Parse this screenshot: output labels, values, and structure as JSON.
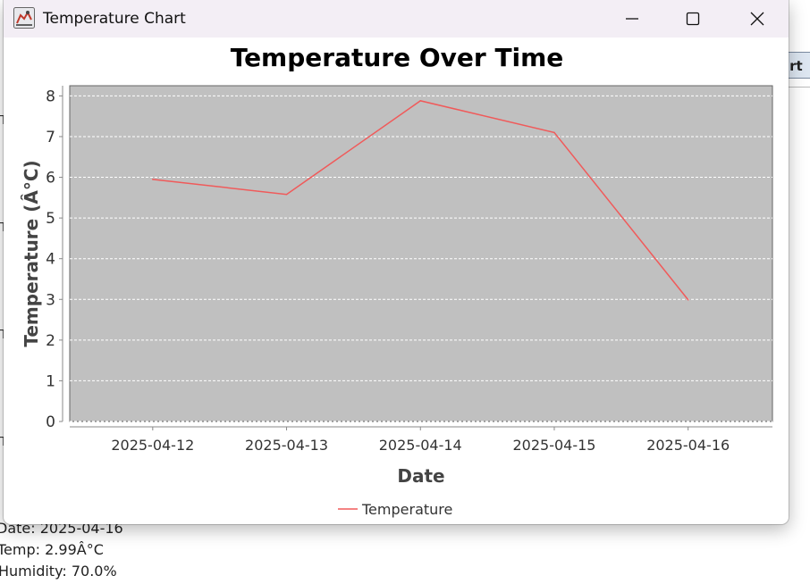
{
  "window": {
    "title": "Temperature Chart",
    "minimize_icon": "minimize-icon",
    "maximize_icon": "maximize-icon",
    "close_icon": "close-icon",
    "app_icon": "java-app-icon"
  },
  "background_app": {
    "button_label": "art",
    "details": [
      "Date: 2025-04-16",
      "Temp: 2.99Â°C",
      "Humidity: 70.0%"
    ]
  },
  "chart_data": {
    "type": "line",
    "title": "Temperature Over Time",
    "xlabel": "Date",
    "ylabel": "Temperature (Â°C)",
    "categories": [
      "2025-04-12",
      "2025-04-13",
      "2025-04-14",
      "2025-04-15",
      "2025-04-16"
    ],
    "series": [
      {
        "name": "Temperature",
        "values": [
          5.95,
          5.58,
          7.88,
          7.1,
          2.99
        ],
        "color": "#f05a5a"
      }
    ],
    "ylim": [
      0,
      8.25
    ],
    "yticks": [
      0,
      1,
      2,
      3,
      4,
      5,
      6,
      7,
      8
    ],
    "grid": true,
    "plot_background": "#c0c0c0",
    "legend_position": "bottom-center"
  }
}
